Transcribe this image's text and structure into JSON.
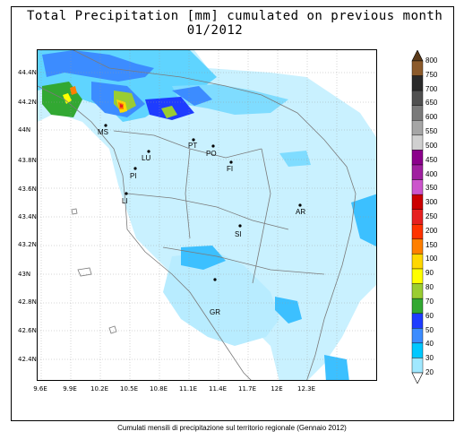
{
  "title": {
    "line1": "Total Precipitation [mm] cumulated on previous month",
    "line2": "01/2012"
  },
  "caption": "Cumulati mensili di precipitazione sul territorio regionale (Gennaio 2012)",
  "axes": {
    "y_ticks": [
      "44.4N",
      "44.2N",
      "44N",
      "43.8N",
      "43.6N",
      "43.4N",
      "43.2N",
      "43N",
      "42.8N",
      "42.6N",
      "42.4N"
    ],
    "x_ticks": [
      "9.6E",
      "9.9E",
      "10.2E",
      "10.5E",
      "10.8E",
      "11.1E",
      "11.4E",
      "11.7E",
      "12E",
      "12.3E"
    ]
  },
  "cities": [
    {
      "name": "MS"
    },
    {
      "name": "LU"
    },
    {
      "name": "PT"
    },
    {
      "name": "PO"
    },
    {
      "name": "FI"
    },
    {
      "name": "PI"
    },
    {
      "name": "LI"
    },
    {
      "name": "AR"
    },
    {
      "name": "SI"
    },
    {
      "name": "GR"
    }
  ],
  "legend": {
    "labels": [
      "800",
      "750",
      "700",
      "650",
      "600",
      "550",
      "500",
      "450",
      "400",
      "350",
      "300",
      "250",
      "200",
      "150",
      "100",
      "90",
      "80",
      "70",
      "60",
      "50",
      "40",
      "30",
      "20"
    ],
    "colors": [
      "#5b3a1a",
      "#8b5a2b",
      "#2a2a2a",
      "#505050",
      "#7a7a7a",
      "#a6a6a6",
      "#d0d0d0",
      "#8b008b",
      "#a020a0",
      "#cc55cc",
      "#cc0000",
      "#e62020",
      "#ff3300",
      "#ff7f00",
      "#ffd700",
      "#ffff00",
      "#9acd32",
      "#32a832",
      "#1e3cff",
      "#3c8cff",
      "#00c8ff",
      "#a0e8ff",
      "#ffffff"
    ]
  }
}
